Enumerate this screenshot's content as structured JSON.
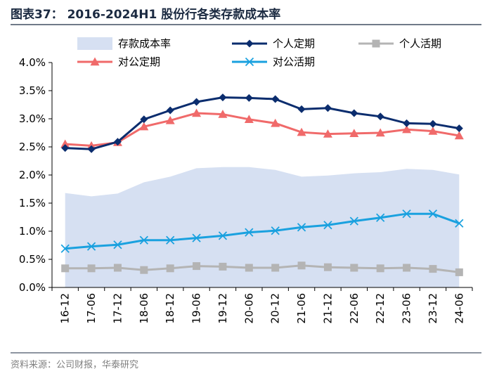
{
  "chart_data": {
    "type": "line",
    "title": "图表37： 2016-2024H1 股份行各类存款成本率",
    "source": "资料来源：公司财报，华泰研究",
    "categories": [
      "16-12",
      "17-06",
      "17-12",
      "18-06",
      "18-12",
      "19-06",
      "19-12",
      "20-06",
      "20-12",
      "21-06",
      "21-12",
      "22-06",
      "22-12",
      "23-06",
      "23-12",
      "24-06"
    ],
    "ylim": [
      0,
      4.0
    ],
    "yticks": [
      "0.0%",
      "0.5%",
      "1.0%",
      "1.5%",
      "2.0%",
      "2.5%",
      "3.0%",
      "3.5%",
      "4.0%"
    ],
    "grid": false,
    "legend_position": "top",
    "series": [
      {
        "name": "存款成本率",
        "kind": "area",
        "color": "#d6e0f2",
        "values": [
          1.68,
          1.62,
          1.67,
          1.87,
          1.97,
          2.12,
          2.14,
          2.14,
          2.09,
          1.97,
          1.99,
          2.03,
          2.05,
          2.11,
          2.09,
          2.01
        ]
      },
      {
        "name": "个人定期",
        "kind": "line",
        "marker": "diamond",
        "color": "#0b2d6e",
        "values": [
          2.48,
          2.46,
          2.59,
          2.99,
          3.15,
          3.3,
          3.38,
          3.37,
          3.35,
          3.17,
          3.19,
          3.1,
          3.04,
          2.92,
          2.91,
          2.83
        ]
      },
      {
        "name": "个人活期",
        "kind": "line",
        "marker": "square",
        "color": "#b4b4b4",
        "values": [
          0.34,
          0.34,
          0.35,
          0.31,
          0.34,
          0.38,
          0.37,
          0.35,
          0.35,
          0.39,
          0.36,
          0.35,
          0.34,
          0.35,
          0.33,
          0.27
        ]
      },
      {
        "name": "对公定期",
        "kind": "line",
        "marker": "triangle",
        "color": "#f06a6a",
        "values": [
          2.55,
          2.52,
          2.58,
          2.86,
          2.97,
          3.1,
          3.08,
          2.99,
          2.92,
          2.76,
          2.73,
          2.74,
          2.75,
          2.81,
          2.78,
          2.7
        ]
      },
      {
        "name": "对公活期",
        "kind": "line",
        "marker": "x",
        "color": "#1aa1df",
        "values": [
          0.69,
          0.73,
          0.76,
          0.84,
          0.84,
          0.88,
          0.92,
          0.98,
          1.01,
          1.07,
          1.11,
          1.18,
          1.24,
          1.31,
          1.31,
          1.14
        ]
      }
    ]
  }
}
